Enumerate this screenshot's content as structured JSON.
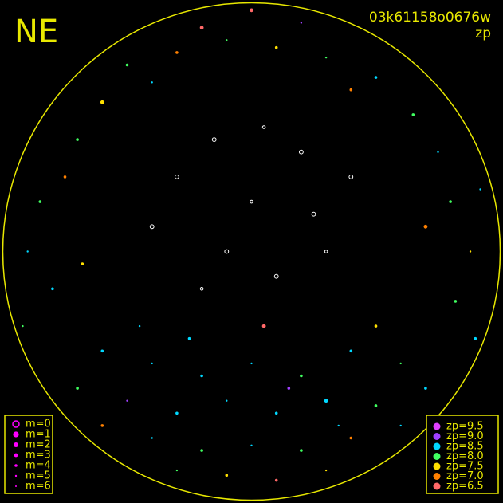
{
  "chart_data": {
    "type": "scatter",
    "title": "NE",
    "subtitle": "03k61158o0676w",
    "label": "zp",
    "xlim": [
      -1,
      1
    ],
    "ylim": [
      -1,
      1
    ],
    "x": [
      -0.5,
      -0.3,
      -0.1,
      0.1,
      0.3,
      0.5,
      -0.6,
      0.65,
      -0.2,
      0.2,
      0.0,
      -0.4,
      0.4,
      -0.7,
      0.75,
      -0.85,
      -0.9,
      -0.8,
      -0.75,
      0.8,
      0.88,
      0.82,
      0.7,
      -0.68,
      0.92,
      -0.92,
      0.9,
      -0.6,
      -0.4,
      -0.2,
      0.0,
      0.2,
      0.4,
      0.6,
      -0.5,
      -0.3,
      -0.1,
      0.1,
      0.3,
      0.5,
      -0.4,
      -0.2,
      0.0,
      0.2,
      0.4,
      -0.6,
      0.6,
      -0.1,
      0.1,
      0.3,
      -0.3,
      0.15,
      -0.25,
      0.5,
      -0.7,
      0.7,
      0.35,
      -0.45,
      0.05,
      -0.3,
      0.0,
      0.2,
      -0.1,
      0.3,
      -0.4,
      0.1,
      -0.2,
      0.4,
      0.05,
      -0.15,
      0.25
    ],
    "y": [
      0.75,
      0.8,
      0.85,
      0.82,
      0.78,
      0.7,
      0.6,
      0.55,
      0.9,
      0.92,
      0.97,
      0.68,
      0.65,
      0.45,
      0.4,
      0.2,
      0.0,
      -0.15,
      0.3,
      0.2,
      0.0,
      -0.2,
      0.1,
      -0.05,
      0.25,
      -0.3,
      -0.35,
      -0.4,
      -0.45,
      -0.5,
      -0.45,
      -0.5,
      -0.4,
      -0.45,
      -0.6,
      -0.65,
      -0.6,
      -0.65,
      -0.6,
      -0.62,
      -0.75,
      -0.8,
      -0.78,
      -0.8,
      -0.75,
      -0.7,
      -0.7,
      -0.9,
      -0.92,
      -0.88,
      -0.88,
      -0.55,
      -0.35,
      -0.3,
      -0.55,
      -0.55,
      -0.7,
      -0.3,
      -0.3,
      0.3,
      0.2,
      0.4,
      0.0,
      0.0,
      0.1,
      -0.1,
      -0.15,
      0.3,
      0.5,
      0.45,
      0.15
    ],
    "zp": [
      8.0,
      7.0,
      8.0,
      7.5,
      8.0,
      8.5,
      7.5,
      8.0,
      6.5,
      9.0,
      6.5,
      8.5,
      7.0,
      8.0,
      8.5,
      8.0,
      8.5,
      8.5,
      7.0,
      8.0,
      7.5,
      8.0,
      7.0,
      7.5,
      8.5,
      8.0,
      8.5,
      8.5,
      8.5,
      8.5,
      8.5,
      8.0,
      8.5,
      8.0,
      9.0,
      8.5,
      8.5,
      8.5,
      8.5,
      8.0,
      8.5,
      8.0,
      8.5,
      8.0,
      7.0,
      7.0,
      8.5,
      7.5,
      6.5,
      7.5,
      8.0,
      9.0,
      8.5,
      7.5,
      8.0,
      8.5,
      8.5,
      8.5,
      6.5,
      null,
      null,
      null,
      null,
      null,
      null,
      null,
      null,
      null,
      null,
      null,
      null
    ],
    "m": [
      4,
      4,
      5,
      4,
      5,
      4,
      3,
      4,
      3,
      5,
      3,
      5,
      4,
      4,
      5,
      4,
      5,
      4,
      4,
      4,
      5,
      4,
      3,
      4,
      5,
      5,
      4,
      4,
      5,
      4,
      5,
      4,
      4,
      5,
      5,
      4,
      5,
      4,
      3,
      4,
      5,
      4,
      5,
      4,
      4,
      4,
      5,
      4,
      4,
      5,
      5,
      4,
      4,
      4,
      4,
      4,
      5,
      5,
      3,
      3,
      4,
      3,
      3,
      4,
      3,
      3,
      4,
      3,
      4,
      3,
      3
    ],
    "size_legend": [
      {
        "value": 0,
        "label": "m=0"
      },
      {
        "value": 1,
        "label": "m=1"
      },
      {
        "value": 2,
        "label": "m=2"
      },
      {
        "value": 3,
        "label": "m=3"
      },
      {
        "value": 4,
        "label": "m=4"
      },
      {
        "value": 5,
        "label": "m=5"
      },
      {
        "value": 6,
        "label": "m=6"
      }
    ],
    "color_legend": [
      {
        "value": 9.5,
        "label": "zp=9.5",
        "color": "#e040ff"
      },
      {
        "value": 9.0,
        "label": "zp=9.0",
        "color": "#a040ff"
      },
      {
        "value": 8.5,
        "label": "zp=8.5",
        "color": "#00d8ff"
      },
      {
        "value": 8.0,
        "label": "zp=8.0",
        "color": "#40ff60"
      },
      {
        "value": 7.5,
        "label": "zp=7.5",
        "color": "#ffe000"
      },
      {
        "value": 7.0,
        "label": "zp=7.0",
        "color": "#ff8000"
      },
      {
        "value": 6.5,
        "label": "zp=6.5",
        "color": "#ff6868"
      }
    ],
    "size_legend_color": "#ff00ff",
    "frame_color": "#e8e800"
  }
}
